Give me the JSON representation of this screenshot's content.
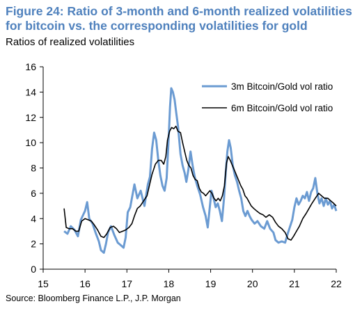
{
  "page": {
    "title": "Figure 24: Ratio of 3-month and 6-month realized volatilities for bitcoin vs. the corresponding volatilities for gold",
    "subtitle": "Ratios of realized volatilities",
    "source": "Source: Bloomberg Finance L.P., J.P. Morgan"
  },
  "colors": {
    "series1": "#6b9bd2",
    "series2": "#000000"
  },
  "chart_data": {
    "type": "line",
    "title": "Figure 24: Ratio of 3-month and 6-month realized volatilities for bitcoin vs. the corresponding volatilities for gold",
    "subtitle": "Ratios of realized volatilities",
    "xlabel": "",
    "ylabel": "",
    "xlim": [
      15,
      22
    ],
    "ylim": [
      0,
      16
    ],
    "x_ticks": [
      15,
      16,
      17,
      18,
      19,
      20,
      21,
      22
    ],
    "y_ticks": [
      0,
      2,
      4,
      6,
      8,
      10,
      12,
      14,
      16
    ],
    "grid": false,
    "legend_position": "top-right",
    "series": [
      {
        "name": "3m Bitcoin/Gold vol ratio",
        "color": "#6b9bd2",
        "points": [
          [
            15.5,
            3.0
          ],
          [
            15.58,
            2.8
          ],
          [
            15.66,
            3.4
          ],
          [
            15.75,
            3.1
          ],
          [
            15.83,
            2.6
          ],
          [
            15.9,
            3.9
          ],
          [
            16.0,
            4.6
          ],
          [
            16.05,
            5.3
          ],
          [
            16.1,
            4.0
          ],
          [
            16.18,
            3.6
          ],
          [
            16.25,
            2.9
          ],
          [
            16.33,
            2.2
          ],
          [
            16.38,
            1.5
          ],
          [
            16.45,
            1.3
          ],
          [
            16.5,
            2.0
          ],
          [
            16.55,
            2.9
          ],
          [
            16.62,
            3.4
          ],
          [
            16.7,
            2.7
          ],
          [
            16.78,
            2.1
          ],
          [
            16.85,
            1.9
          ],
          [
            16.92,
            1.7
          ],
          [
            16.97,
            2.5
          ],
          [
            17.02,
            4.5
          ],
          [
            17.08,
            4.9
          ],
          [
            17.13,
            5.8
          ],
          [
            17.18,
            6.7
          ],
          [
            17.25,
            5.6
          ],
          [
            17.33,
            6.2
          ],
          [
            17.42,
            5.0
          ],
          [
            17.5,
            6.7
          ],
          [
            17.55,
            7.3
          ],
          [
            17.6,
            9.5
          ],
          [
            17.65,
            10.8
          ],
          [
            17.7,
            10.2
          ],
          [
            17.75,
            8.6
          ],
          [
            17.8,
            7.4
          ],
          [
            17.85,
            6.6
          ],
          [
            17.9,
            6.2
          ],
          [
            17.95,
            7.2
          ],
          [
            18.0,
            10.5
          ],
          [
            18.03,
            12.8
          ],
          [
            18.06,
            14.3
          ],
          [
            18.1,
            14.0
          ],
          [
            18.14,
            13.4
          ],
          [
            18.18,
            12.3
          ],
          [
            18.22,
            11.3
          ],
          [
            18.28,
            9.1
          ],
          [
            18.33,
            8.2
          ],
          [
            18.38,
            7.6
          ],
          [
            18.42,
            6.9
          ],
          [
            18.47,
            7.9
          ],
          [
            18.52,
            9.3
          ],
          [
            18.57,
            8.2
          ],
          [
            18.62,
            7.3
          ],
          [
            18.68,
            6.6
          ],
          [
            18.75,
            5.9
          ],
          [
            18.82,
            4.9
          ],
          [
            18.88,
            4.2
          ],
          [
            18.93,
            3.3
          ],
          [
            18.97,
            4.6
          ],
          [
            19.02,
            6.2
          ],
          [
            19.07,
            5.6
          ],
          [
            19.12,
            4.9
          ],
          [
            19.17,
            5.2
          ],
          [
            19.22,
            4.6
          ],
          [
            19.27,
            3.8
          ],
          [
            19.32,
            5.6
          ],
          [
            19.36,
            7.6
          ],
          [
            19.4,
            9.3
          ],
          [
            19.44,
            10.2
          ],
          [
            19.48,
            9.6
          ],
          [
            19.53,
            8.2
          ],
          [
            19.58,
            7.4
          ],
          [
            19.63,
            6.9
          ],
          [
            19.68,
            6.2
          ],
          [
            19.73,
            5.6
          ],
          [
            19.78,
            4.6
          ],
          [
            19.83,
            4.2
          ],
          [
            19.88,
            4.6
          ],
          [
            19.93,
            4.2
          ],
          [
            19.98,
            3.9
          ],
          [
            20.05,
            3.6
          ],
          [
            20.12,
            3.8
          ],
          [
            20.2,
            3.4
          ],
          [
            20.28,
            3.2
          ],
          [
            20.35,
            3.8
          ],
          [
            20.42,
            3.2
          ],
          [
            20.5,
            2.9
          ],
          [
            20.55,
            2.3
          ],
          [
            20.62,
            2.1
          ],
          [
            20.7,
            2.2
          ],
          [
            20.78,
            2.1
          ],
          [
            20.85,
            2.9
          ],
          [
            20.9,
            3.4
          ],
          [
            20.95,
            3.9
          ],
          [
            21.0,
            4.9
          ],
          [
            21.05,
            5.6
          ],
          [
            21.1,
            5.1
          ],
          [
            21.15,
            5.4
          ],
          [
            21.2,
            5.8
          ],
          [
            21.25,
            5.6
          ],
          [
            21.3,
            6.1
          ],
          [
            21.35,
            5.4
          ],
          [
            21.4,
            6.1
          ],
          [
            21.45,
            6.4
          ],
          [
            21.5,
            7.2
          ],
          [
            21.55,
            6.0
          ],
          [
            21.6,
            5.2
          ],
          [
            21.65,
            5.6
          ],
          [
            21.7,
            5.0
          ],
          [
            21.75,
            5.6
          ],
          [
            21.8,
            5.1
          ],
          [
            21.85,
            5.4
          ],
          [
            21.9,
            4.8
          ],
          [
            21.95,
            5.1
          ],
          [
            22.0,
            4.6
          ]
        ]
      },
      {
        "name": "6m Bitcoin/Gold vol ratio",
        "color": "#000000",
        "points": [
          [
            15.5,
            4.8
          ],
          [
            15.55,
            3.3
          ],
          [
            15.62,
            3.2
          ],
          [
            15.7,
            3.2
          ],
          [
            15.78,
            3.0
          ],
          [
            15.85,
            3.0
          ],
          [
            15.92,
            3.8
          ],
          [
            16.0,
            4.0
          ],
          [
            16.08,
            3.9
          ],
          [
            16.15,
            3.8
          ],
          [
            16.22,
            3.5
          ],
          [
            16.3,
            3.1
          ],
          [
            16.38,
            2.6
          ],
          [
            16.45,
            2.5
          ],
          [
            16.52,
            2.8
          ],
          [
            16.6,
            3.3
          ],
          [
            16.68,
            3.4
          ],
          [
            16.75,
            3.2
          ],
          [
            16.82,
            2.9
          ],
          [
            16.9,
            3.0
          ],
          [
            16.97,
            3.1
          ],
          [
            17.05,
            3.3
          ],
          [
            17.12,
            3.6
          ],
          [
            17.18,
            4.2
          ],
          [
            17.25,
            4.8
          ],
          [
            17.32,
            5.0
          ],
          [
            17.4,
            5.4
          ],
          [
            17.48,
            5.8
          ],
          [
            17.55,
            6.8
          ],
          [
            17.6,
            7.5
          ],
          [
            17.68,
            8.3
          ],
          [
            17.75,
            8.6
          ],
          [
            17.82,
            8.6
          ],
          [
            17.88,
            8.3
          ],
          [
            17.93,
            8.9
          ],
          [
            17.97,
            10.2
          ],
          [
            18.02,
            10.9
          ],
          [
            18.07,
            11.2
          ],
          [
            18.12,
            11.1
          ],
          [
            18.17,
            11.3
          ],
          [
            18.22,
            10.9
          ],
          [
            18.28,
            10.8
          ],
          [
            18.33,
            10.0
          ],
          [
            18.38,
            9.3
          ],
          [
            18.43,
            8.6
          ],
          [
            18.48,
            8.2
          ],
          [
            18.53,
            8.0
          ],
          [
            18.58,
            7.4
          ],
          [
            18.63,
            7.1
          ],
          [
            18.68,
            7.0
          ],
          [
            18.73,
            6.4
          ],
          [
            18.78,
            6.1
          ],
          [
            18.83,
            6.0
          ],
          [
            18.88,
            5.8
          ],
          [
            18.93,
            6.0
          ],
          [
            18.98,
            6.2
          ],
          [
            19.03,
            6.0
          ],
          [
            19.08,
            5.6
          ],
          [
            19.13,
            5.4
          ],
          [
            19.18,
            5.6
          ],
          [
            19.23,
            5.4
          ],
          [
            19.28,
            5.8
          ],
          [
            19.33,
            6.6
          ],
          [
            19.38,
            8.4
          ],
          [
            19.42,
            8.9
          ],
          [
            19.47,
            8.6
          ],
          [
            19.52,
            8.2
          ],
          [
            19.57,
            7.8
          ],
          [
            19.62,
            7.4
          ],
          [
            19.67,
            7.0
          ],
          [
            19.72,
            6.6
          ],
          [
            19.77,
            6.3
          ],
          [
            19.82,
            5.8
          ],
          [
            19.87,
            5.6
          ],
          [
            19.92,
            5.3
          ],
          [
            19.97,
            5.0
          ],
          [
            20.03,
            4.8
          ],
          [
            20.1,
            4.6
          ],
          [
            20.18,
            4.4
          ],
          [
            20.25,
            4.3
          ],
          [
            20.32,
            4.1
          ],
          [
            20.4,
            4.3
          ],
          [
            20.48,
            4.1
          ],
          [
            20.55,
            3.7
          ],
          [
            20.62,
            3.4
          ],
          [
            20.7,
            3.2
          ],
          [
            20.78,
            2.9
          ],
          [
            20.85,
            2.4
          ],
          [
            20.92,
            2.3
          ],
          [
            20.98,
            2.6
          ],
          [
            21.05,
            3.0
          ],
          [
            21.12,
            3.4
          ],
          [
            21.2,
            4.0
          ],
          [
            21.28,
            4.4
          ],
          [
            21.35,
            4.8
          ],
          [
            21.42,
            5.2
          ],
          [
            21.5,
            5.6
          ],
          [
            21.58,
            6.0
          ],
          [
            21.65,
            5.8
          ],
          [
            21.72,
            5.6
          ],
          [
            21.8,
            5.6
          ],
          [
            21.87,
            5.4
          ],
          [
            21.94,
            5.2
          ],
          [
            22.0,
            5.0
          ]
        ]
      }
    ]
  }
}
